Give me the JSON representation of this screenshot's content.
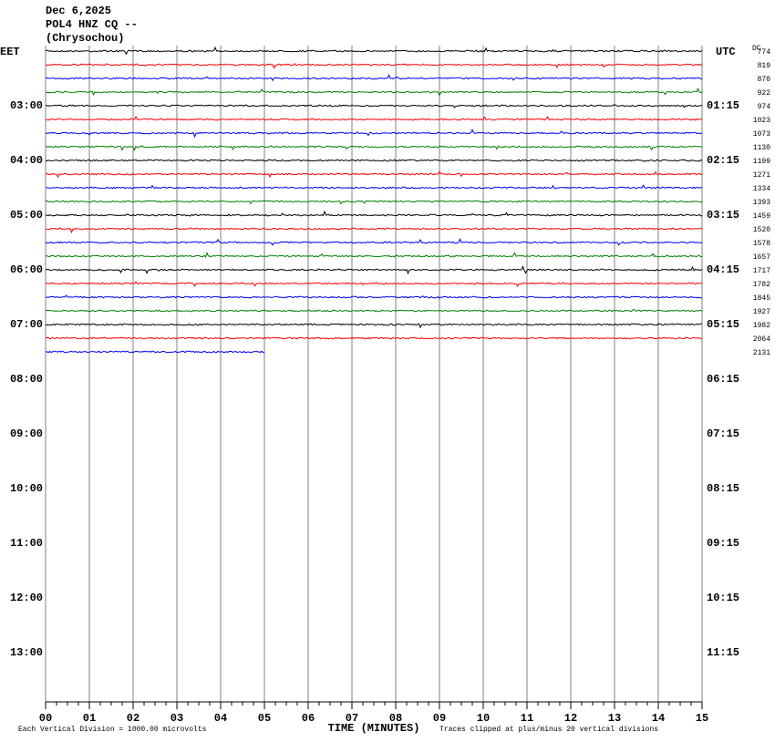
{
  "chart_data": {
    "type": "helicorder",
    "title_lines": [
      "Dec 6,2025",
      "POL4 HNZ CQ --",
      "(Chrysochou)"
    ],
    "ylabel": "EET",
    "y2label": "UTC",
    "dc_label": "DC",
    "xlabel": "TIME (MINUTES)",
    "scale_note": "Each Vertical Division = 1000.00 microvolts",
    "clip_note": "Traces clipped at plus/minus 20 vertical divisions",
    "xlim": [
      0,
      15
    ],
    "xticks": [
      {
        "value": 0,
        "label": "00"
      },
      {
        "value": 1,
        "label": "01"
      },
      {
        "value": 2,
        "label": "02"
      },
      {
        "value": 3,
        "label": "03"
      },
      {
        "value": 4,
        "label": "04"
      },
      {
        "value": 5,
        "label": "05"
      },
      {
        "value": 6,
        "label": "06"
      },
      {
        "value": 7,
        "label": "07"
      },
      {
        "value": 8,
        "label": "08"
      },
      {
        "value": 9,
        "label": "09"
      },
      10,
      11,
      12,
      13,
      14,
      15
    ],
    "minor_tick_step": 0.25,
    "ylim": [
      1.9,
      13.85
    ],
    "yticks": [
      {
        "value": 3,
        "label": "03:00"
      },
      {
        "value": 4,
        "label": "04:00"
      },
      {
        "value": 5,
        "label": "05:00"
      },
      {
        "value": 6,
        "label": "06:00"
      },
      {
        "value": 7,
        "label": "07:00"
      },
      {
        "value": 8,
        "label": "08:00"
      },
      {
        "value": 9,
        "label": "09:00"
      },
      {
        "value": 10,
        "label": "10:00"
      },
      {
        "value": 11,
        "label": "11:00"
      },
      {
        "value": 12,
        "label": "12:00"
      },
      {
        "value": 13,
        "label": "13:00"
      }
    ],
    "y2lim": [
      0.15,
      12.1
    ],
    "y2ticks": [
      {
        "value": 1.25,
        "label": "01:15"
      },
      {
        "value": 2.25,
        "label": "02:15"
      },
      {
        "value": 3.25,
        "label": "03:15"
      },
      {
        "value": 4.25,
        "label": "04:15"
      },
      {
        "value": 5.25,
        "label": "05:15"
      },
      {
        "value": 6.25,
        "label": "06:15"
      },
      {
        "value": 7.25,
        "label": "07:15"
      },
      {
        "value": 8.25,
        "label": "08:15"
      },
      {
        "value": 9.25,
        "label": "09:15"
      },
      {
        "value": 10.25,
        "label": "10:15"
      },
      {
        "value": 11.25,
        "label": "11:15"
      }
    ],
    "colors": [
      "#000000",
      "#ff0000",
      "#0000ff",
      "#008000"
    ],
    "grid_color": "#808080",
    "traces": [
      {
        "start": 2,
        "duration": 15,
        "dc": 774
      },
      {
        "start": 2.25,
        "duration": 15,
        "dc": 819
      },
      {
        "start": 2.5,
        "duration": 15,
        "dc": 870
      },
      {
        "start": 2.75,
        "duration": 15,
        "dc": 922
      },
      {
        "start": 3,
        "duration": 15,
        "dc": 974
      },
      {
        "start": 3.25,
        "duration": 15,
        "dc": 1023
      },
      {
        "start": 3.5,
        "duration": 15,
        "dc": 1073
      },
      {
        "start": 3.75,
        "duration": 15,
        "dc": 1130
      },
      {
        "start": 4,
        "duration": 15,
        "dc": 1199
      },
      {
        "start": 4.25,
        "duration": 15,
        "dc": 1271
      },
      {
        "start": 4.5,
        "duration": 15,
        "dc": 1334
      },
      {
        "start": 4.75,
        "duration": 15,
        "dc": 1393
      },
      {
        "start": 5,
        "duration": 15,
        "dc": 1459
      },
      {
        "start": 5.25,
        "duration": 15,
        "dc": 1520
      },
      {
        "start": 5.5,
        "duration": 15,
        "dc": 1578
      },
      {
        "start": 5.75,
        "duration": 15,
        "dc": 1657
      },
      {
        "start": 6,
        "duration": 15,
        "dc": 1717
      },
      {
        "start": 6.25,
        "duration": 15,
        "dc": 1782
      },
      {
        "start": 6.5,
        "duration": 15,
        "dc": 1845
      },
      {
        "start": 6.75,
        "duration": 15,
        "dc": 1927
      },
      {
        "start": 7,
        "duration": 15,
        "dc": 1982
      },
      {
        "start": 7.25,
        "duration": 15,
        "dc": 2064
      },
      {
        "start": 7.5,
        "duration": 5,
        "dc": 2131
      }
    ]
  }
}
